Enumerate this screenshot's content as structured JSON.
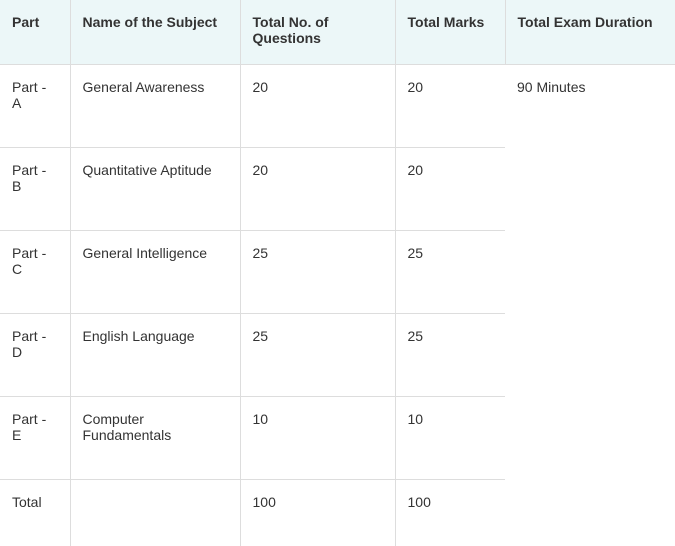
{
  "table": {
    "columns": [
      "Part",
      "Name of the Subject",
      "Total No. of Questions",
      "Total Marks",
      "Total Exam Duration"
    ],
    "rows": [
      {
        "part": "Part - A",
        "subject": "General Awareness",
        "questions": "20",
        "marks": "20",
        "duration": "90 Minutes"
      },
      {
        "part": "Part - B",
        "subject": "Quantitative Aptitude",
        "questions": "20",
        "marks": "20"
      },
      {
        "part": "Part - C",
        "subject": "General Intelligence",
        "questions": "25",
        "marks": "25"
      },
      {
        "part": "Part - D",
        "subject": "English Language",
        "questions": "25",
        "marks": "25"
      },
      {
        "part": "Part - E",
        "subject": "Computer Fundamentals",
        "questions": "10",
        "marks": "10"
      }
    ],
    "total": {
      "label": "Total",
      "questions": "100",
      "marks": "100"
    },
    "header_bg": "#ecf7f8",
    "border_color": "#dddddd",
    "font_family": "Segoe UI",
    "font_size": 14
  }
}
